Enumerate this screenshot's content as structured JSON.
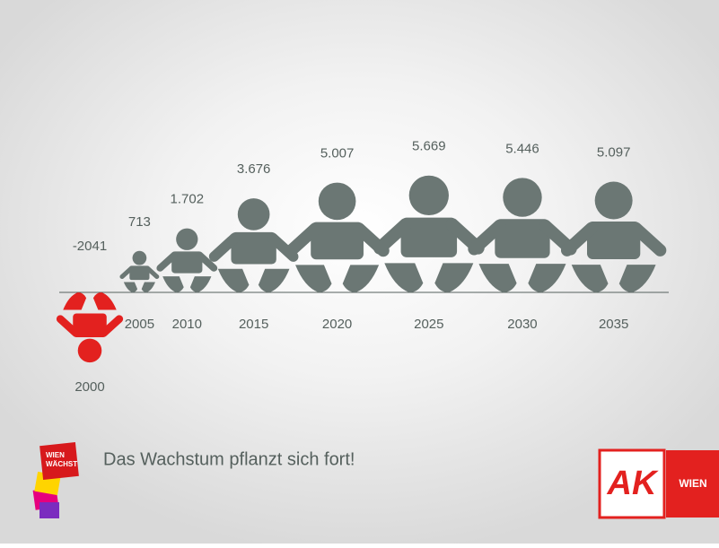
{
  "chart_data": {
    "type": "pictogram",
    "title": "Das Wachstum pflanzt sich fort!",
    "categories": [
      "2000",
      "2005",
      "2010",
      "2015",
      "2020",
      "2025",
      "2030",
      "2035"
    ],
    "values": [
      -2041,
      713,
      1702,
      3676,
      5007,
      5669,
      5446,
      5097
    ],
    "value_labels": [
      "-2041",
      "713",
      "1.702",
      "3.676",
      "5.007",
      "5.669",
      "5.446",
      "5.097"
    ],
    "color": "#6b7774",
    "negative_color": "#e3211f"
  },
  "logo_left": [
    "WIEN",
    "WÄCHST"
  ],
  "logo_right": {
    "mark": "AK",
    "text": "WIEN"
  }
}
